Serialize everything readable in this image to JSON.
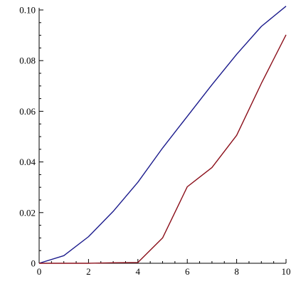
{
  "chart_data": {
    "type": "line",
    "title": "",
    "xlabel": "",
    "ylabel": "",
    "xlim": [
      0,
      10
    ],
    "ylim": [
      0,
      0.1
    ],
    "grid": false,
    "x_ticks_major": [
      0,
      2,
      4,
      6,
      8,
      10
    ],
    "x_tick_labels": [
      "0",
      "2",
      "4",
      "6",
      "8",
      "10"
    ],
    "x_ticks_minor": [
      0.5,
      1,
      1.5,
      2.5,
      3,
      3.5,
      4.5,
      5,
      5.5,
      6.5,
      7,
      7.5,
      8.5,
      9,
      9.5
    ],
    "y_ticks_major": [
      0,
      0.02,
      0.04,
      0.06,
      0.08,
      0.1
    ],
    "y_tick_labels": [
      "0",
      "0.02",
      "0.04",
      "0.06",
      "0.08",
      "0.10"
    ],
    "y_ticks_minor": [
      0.005,
      0.01,
      0.015,
      0.025,
      0.03,
      0.035,
      0.045,
      0.05,
      0.055,
      0.065,
      0.07,
      0.075,
      0.085,
      0.09,
      0.095
    ],
    "series": [
      {
        "color": "#1a1a8c",
        "x": [
          0,
          1,
          2,
          3,
          4,
          5,
          6,
          7,
          8,
          9,
          10
        ],
        "values": [
          0,
          0.003,
          0.0105,
          0.0205,
          0.032,
          0.0455,
          0.058,
          0.0705,
          0.0825,
          0.0935,
          0.1015
        ]
      },
      {
        "color": "#8b0f1a",
        "x": [
          0,
          1,
          2,
          3,
          4,
          5,
          6,
          7,
          8,
          9,
          10
        ],
        "values": [
          0,
          0,
          0,
          0.0002,
          0.0003,
          0.01,
          0.0302,
          0.0378,
          0.0505,
          0.071,
          0.0902
        ]
      }
    ]
  }
}
